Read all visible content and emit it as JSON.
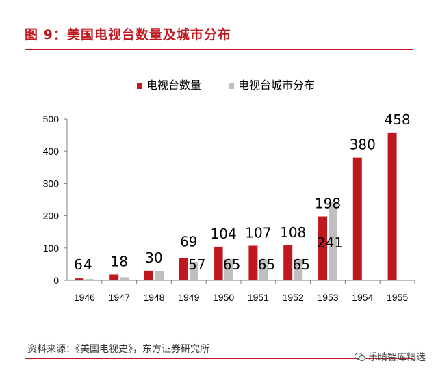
{
  "header": {
    "title": "图 9：美国电视台数量及城市分布"
  },
  "footer": {
    "source": "资料来源：《美国电视史》，东方证券研究所"
  },
  "watermark": {
    "text": "乐晴智库精选",
    "icon": "wechat-icon"
  },
  "colors": {
    "series1": "#c0181f",
    "series2": "#bfbfbf",
    "accent": "#c0181f"
  },
  "chart_data": {
    "type": "bar",
    "categories": [
      "1946",
      "1947",
      "1948",
      "1949",
      "1950",
      "1951",
      "1952",
      "1953",
      "1954",
      "1955"
    ],
    "series": [
      {
        "name": "电视台数量",
        "values": [
          6,
          18,
          30,
          69,
          104,
          107,
          108,
          198,
          380,
          458
        ]
      },
      {
        "name": "电视台城市分布",
        "values": [
          4,
          10,
          28,
          57,
          65,
          65,
          65,
          241,
          null,
          null
        ]
      }
    ],
    "labels": [
      {
        "category": "1946",
        "series": 0,
        "text": "6"
      },
      {
        "category": "1946",
        "series": 1,
        "text": "4"
      },
      {
        "category": "1947",
        "series": 0,
        "text": "18"
      },
      {
        "category": "1948",
        "series": 0,
        "text": "30"
      },
      {
        "category": "1949",
        "series": 0,
        "text": "69"
      },
      {
        "category": "1949",
        "series": 1,
        "text": "57"
      },
      {
        "category": "1950",
        "series": 0,
        "text": "104"
      },
      {
        "category": "1950",
        "series": 1,
        "text": "65"
      },
      {
        "category": "1951",
        "series": 0,
        "text": "107"
      },
      {
        "category": "1951",
        "series": 1,
        "text": "65"
      },
      {
        "category": "1952",
        "series": 0,
        "text": "108"
      },
      {
        "category": "1952",
        "series": 1,
        "text": "65"
      },
      {
        "category": "1953",
        "series": 0,
        "text": "198"
      },
      {
        "category": "1953",
        "series": 1,
        "text": "241"
      },
      {
        "category": "1954",
        "series": 0,
        "text": "380"
      },
      {
        "category": "1955",
        "series": 0,
        "text": "458"
      }
    ],
    "ylim": [
      0,
      500
    ],
    "yticks": [
      "0",
      "100",
      "200",
      "300",
      "400",
      "500"
    ],
    "grid": false,
    "legend_position": "top-right"
  }
}
